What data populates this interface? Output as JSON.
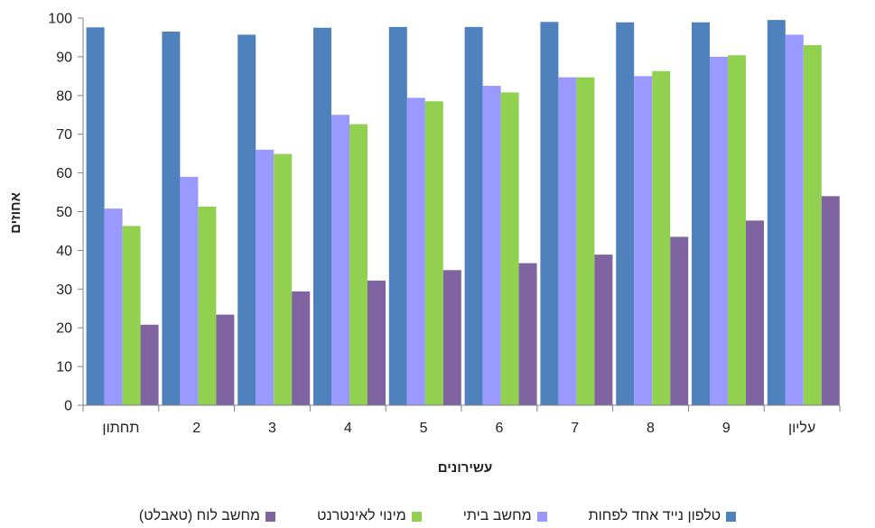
{
  "chart_data": {
    "type": "bar",
    "xlabel": "עשירונים",
    "ylabel": "אחוזים",
    "ylim": [
      0,
      100
    ],
    "yticks": [
      0,
      10,
      20,
      30,
      40,
      50,
      60,
      70,
      80,
      90,
      100
    ],
    "categories": [
      "תחתון",
      "2",
      "3",
      "4",
      "5",
      "6",
      "7",
      "8",
      "9",
      "עליון"
    ],
    "series": [
      {
        "name": "טלפון נייד אחד לפחות",
        "color": "#4f81bd",
        "values": [
          97.6,
          96.5,
          95.7,
          97.5,
          97.7,
          97.7,
          99.0,
          98.9,
          98.9,
          99.5
        ]
      },
      {
        "name": "מחשב ביתי",
        "color": "#9999ff",
        "values": [
          50.8,
          59.0,
          66.0,
          75.0,
          79.4,
          82.5,
          84.7,
          85.0,
          90.0,
          95.7
        ]
      },
      {
        "name": "מינוי לאינטרנט",
        "color": "#92d050",
        "values": [
          46.3,
          51.3,
          64.9,
          72.6,
          78.5,
          80.8,
          84.7,
          86.3,
          90.4,
          93.0
        ]
      },
      {
        "name": "מחשב לוח (טאבלט)",
        "color": "#8064a2",
        "values": [
          20.8,
          23.4,
          29.4,
          32.2,
          34.9,
          36.7,
          38.9,
          43.5,
          47.7,
          54.0
        ]
      }
    ],
    "legend_position": "bottom",
    "grid": false
  }
}
